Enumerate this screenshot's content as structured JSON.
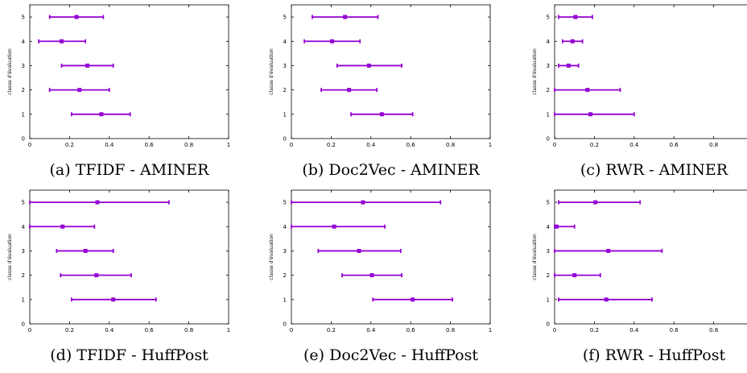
{
  "colors": {
    "series": "#9400d3",
    "axis": "#000000"
  },
  "chart_data": [
    {
      "type": "errorbar",
      "title": "",
      "caption": "(a) TFIDF - AMINER",
      "ylabel": "classe d'évaluation",
      "xlim": [
        0,
        1
      ],
      "ylim": [
        0,
        5.5
      ],
      "xticks": [
        "0",
        "0.2",
        "0.4",
        "0.6",
        "0.8",
        "1"
      ],
      "yticks": [
        "0",
        "1",
        "2",
        "3",
        "4",
        "5"
      ],
      "points": [
        {
          "y": 1,
          "mean": 0.36,
          "low": 0.21,
          "high": 0.505
        },
        {
          "y": 2,
          "mean": 0.25,
          "low": 0.1,
          "high": 0.4
        },
        {
          "y": 3,
          "mean": 0.29,
          "low": 0.16,
          "high": 0.42
        },
        {
          "y": 4,
          "mean": 0.16,
          "low": 0.045,
          "high": 0.28
        },
        {
          "y": 5,
          "mean": 0.235,
          "low": 0.1,
          "high": 0.37
        }
      ]
    },
    {
      "type": "errorbar",
      "title": "",
      "caption": "(b) Doc2Vec - AMINER",
      "ylabel": "classe d'évaluation",
      "xlim": [
        0,
        1
      ],
      "ylim": [
        0,
        5.5
      ],
      "xticks": [
        "0",
        "0.2",
        "0.4",
        "0.6",
        "0.8",
        "1"
      ],
      "yticks": [
        "0",
        "1",
        "2",
        "3",
        "4",
        "5"
      ],
      "points": [
        {
          "y": 1,
          "mean": 0.455,
          "low": 0.3,
          "high": 0.61
        },
        {
          "y": 2,
          "mean": 0.29,
          "low": 0.15,
          "high": 0.43
        },
        {
          "y": 3,
          "mean": 0.39,
          "low": 0.23,
          "high": 0.555
        },
        {
          "y": 4,
          "mean": 0.205,
          "low": 0.065,
          "high": 0.345
        },
        {
          "y": 5,
          "mean": 0.27,
          "low": 0.105,
          "high": 0.435
        }
      ]
    },
    {
      "type": "errorbar",
      "title": "",
      "caption": "(c) RWR - AMINER",
      "ylabel": "classe d'évaluation",
      "xlim": [
        0,
        1
      ],
      "ylim": [
        0,
        5.5
      ],
      "xticks": [
        "0",
        "0.2",
        "0.4",
        "0.6",
        "0.8"
      ],
      "yticks": [
        "0",
        "1",
        "2",
        "3",
        "4",
        "5"
      ],
      "points": [
        {
          "y": 1,
          "mean": 0.18,
          "low": 0.0,
          "high": 0.4
        },
        {
          "y": 2,
          "mean": 0.165,
          "low": 0.0,
          "high": 0.33
        },
        {
          "y": 3,
          "mean": 0.07,
          "low": 0.02,
          "high": 0.12
        },
        {
          "y": 4,
          "mean": 0.09,
          "low": 0.04,
          "high": 0.14
        },
        {
          "y": 5,
          "mean": 0.105,
          "low": 0.02,
          "high": 0.19
        }
      ]
    },
    {
      "type": "errorbar",
      "title": "",
      "caption": "(d) TFIDF - HuffPost",
      "ylabel": "classe d'évaluation",
      "xlim": [
        0,
        1
      ],
      "ylim": [
        0,
        5.5
      ],
      "xticks": [
        "0",
        "0.2",
        "0.4",
        "0.6",
        "0.8",
        "1"
      ],
      "yticks": [
        "0",
        "1",
        "2",
        "3",
        "4",
        "5"
      ],
      "points": [
        {
          "y": 1,
          "mean": 0.42,
          "low": 0.21,
          "high": 0.635
        },
        {
          "y": 2,
          "mean": 0.335,
          "low": 0.155,
          "high": 0.51
        },
        {
          "y": 3,
          "mean": 0.28,
          "low": 0.135,
          "high": 0.42
        },
        {
          "y": 4,
          "mean": 0.165,
          "low": 0.0,
          "high": 0.325
        },
        {
          "y": 5,
          "mean": 0.34,
          "low": 0.0,
          "high": 0.7
        }
      ]
    },
    {
      "type": "errorbar",
      "title": "",
      "caption": "(e) Doc2Vec - HuffPost",
      "ylabel": "classe d'évaluation",
      "xlim": [
        0,
        1
      ],
      "ylim": [
        0,
        5.5
      ],
      "xticks": [
        "0",
        "0.2",
        "0.4",
        "0.6",
        "0.8",
        "1"
      ],
      "yticks": [
        "0",
        "1",
        "2",
        "3",
        "4",
        "5"
      ],
      "points": [
        {
          "y": 1,
          "mean": 0.61,
          "low": 0.41,
          "high": 0.81
        },
        {
          "y": 2,
          "mean": 0.405,
          "low": 0.255,
          "high": 0.555
        },
        {
          "y": 3,
          "mean": 0.34,
          "low": 0.135,
          "high": 0.55
        },
        {
          "y": 4,
          "mean": 0.215,
          "low": 0.0,
          "high": 0.47
        },
        {
          "y": 5,
          "mean": 0.36,
          "low": 0.0,
          "high": 0.75
        }
      ]
    },
    {
      "type": "errorbar",
      "title": "",
      "caption": "(f) RWR - HuffPost",
      "ylabel": "classe d'évaluation",
      "xlim": [
        0,
        1
      ],
      "ylim": [
        0,
        5.5
      ],
      "xticks": [
        "0",
        "0.2",
        "0.4",
        "0.6",
        "0.8"
      ],
      "yticks": [
        "0",
        "1",
        "2",
        "3",
        "4",
        "5"
      ],
      "points": [
        {
          "y": 1,
          "mean": 0.26,
          "low": 0.02,
          "high": 0.49
        },
        {
          "y": 2,
          "mean": 0.1,
          "low": 0.0,
          "high": 0.23
        },
        {
          "y": 3,
          "mean": 0.27,
          "low": 0.0,
          "high": 0.54
        },
        {
          "y": 4,
          "mean": 0.01,
          "low": 0.0,
          "high": 0.1
        },
        {
          "y": 5,
          "mean": 0.205,
          "low": 0.02,
          "high": 0.43
        }
      ]
    }
  ]
}
